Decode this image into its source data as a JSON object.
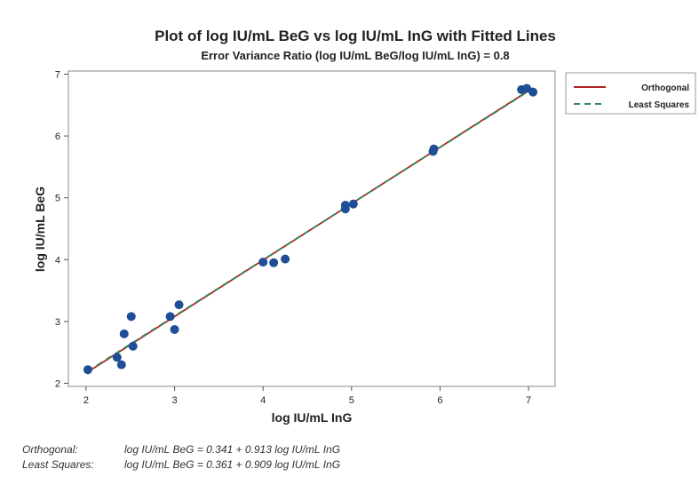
{
  "chart_data": {
    "type": "scatter",
    "title": "Plot of log IU/mL BeG vs log IU/mL InG with Fitted Lines",
    "subtitle": "Error Variance Ratio (log IU/mL BeG/log IU/mL InG) = 0.8",
    "xlabel": "log IU/mL InG",
    "ylabel": "log IU/mL BeG",
    "xlim": [
      1.8,
      7.3
    ],
    "ylim": [
      1.95,
      7.05
    ],
    "xticks": [
      2,
      3,
      4,
      5,
      6,
      7
    ],
    "yticks": [
      2,
      3,
      4,
      5,
      6,
      7
    ],
    "grid": false,
    "legend_position": "top-right",
    "legend": [
      "Orthogonal",
      "Least Squares"
    ],
    "points": [
      {
        "x": 2.02,
        "y": 2.22
      },
      {
        "x": 2.35,
        "y": 2.42
      },
      {
        "x": 2.4,
        "y": 2.3
      },
      {
        "x": 2.43,
        "y": 2.8
      },
      {
        "x": 2.51,
        "y": 3.08
      },
      {
        "x": 2.53,
        "y": 2.6
      },
      {
        "x": 2.95,
        "y": 3.08
      },
      {
        "x": 3.0,
        "y": 2.87
      },
      {
        "x": 3.05,
        "y": 3.27
      },
      {
        "x": 4.0,
        "y": 3.96
      },
      {
        "x": 4.12,
        "y": 3.95
      },
      {
        "x": 4.25,
        "y": 4.01
      },
      {
        "x": 4.93,
        "y": 4.82
      },
      {
        "x": 4.93,
        "y": 4.88
      },
      {
        "x": 5.02,
        "y": 4.9
      },
      {
        "x": 5.92,
        "y": 5.75
      },
      {
        "x": 5.93,
        "y": 5.79
      },
      {
        "x": 6.92,
        "y": 6.75
      },
      {
        "x": 6.98,
        "y": 6.77
      },
      {
        "x": 7.05,
        "y": 6.71
      }
    ],
    "lines": [
      {
        "name": "Orthogonal",
        "intercept": 0.341,
        "slope": 0.913,
        "x_range": [
          2.02,
          7.05
        ],
        "color": "#b22222",
        "dash": "solid"
      },
      {
        "name": "Least Squares",
        "intercept": 0.361,
        "slope": 0.909,
        "x_range": [
          2.02,
          7.05
        ],
        "color": "#2e8b57",
        "dash": "dashed"
      }
    ],
    "point_color": "#1f4e96",
    "equations": [
      {
        "label": "Orthogonal:",
        "text": "log IU/mL BeG = 0.341 + 0.913 log IU/mL InG"
      },
      {
        "label": "Least Squares:",
        "text": "log IU/mL BeG = 0.361 + 0.909 log IU/mL InG"
      }
    ]
  }
}
